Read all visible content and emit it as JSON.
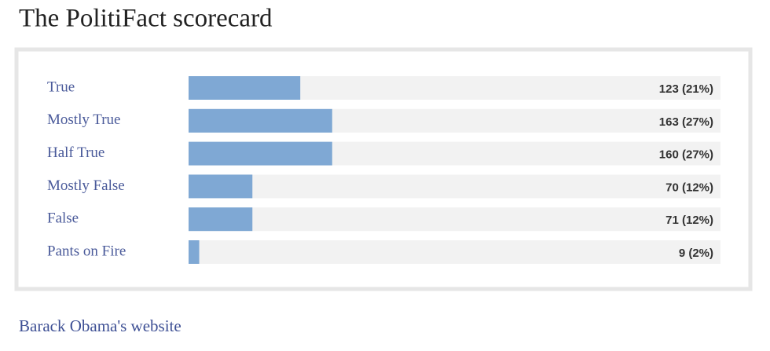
{
  "chart_data": {
    "type": "hbar",
    "title": "The PolitiFact scorecard",
    "categories": [
      "True",
      "Mostly True",
      "Half True",
      "Mostly False",
      "False",
      "Pants on Fire"
    ],
    "values": [
      21,
      27,
      27,
      12,
      12,
      2
    ],
    "value_labels": [
      "123 (21%)",
      "163 (27%)",
      "160 (27%)",
      "70 (12%)",
      "71 (12%)",
      "9 (2%)"
    ],
    "color": "#7fa8d4",
    "xlim": [
      0,
      100
    ]
  },
  "link_text": "Barack Obama's website"
}
